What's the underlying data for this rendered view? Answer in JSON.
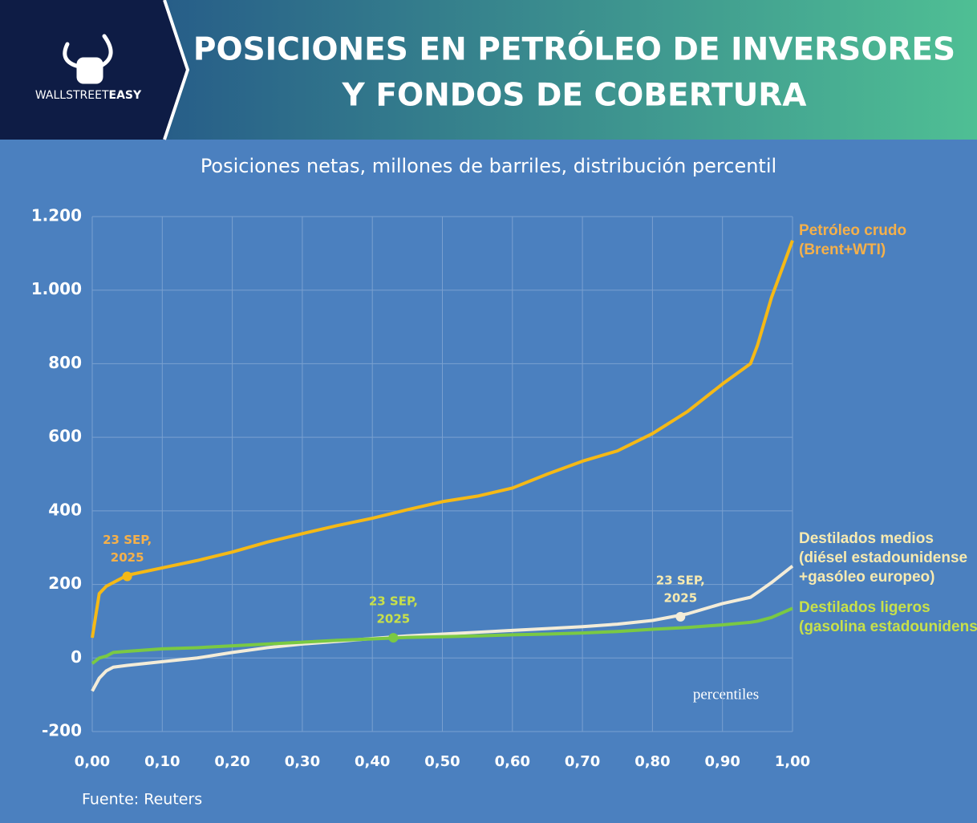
{
  "header": {
    "title": [
      "POSICIONES EN PETRÓLEO DE INVERSORES",
      "Y FONDOS DE COBERTURA"
    ],
    "logo": [
      "WALLSTREET",
      "EASY"
    ]
  },
  "chart_data": {
    "type": "line",
    "subtitle": "Posiciones netas, millones de barriles, distribución percentil",
    "x_label": "percentiles",
    "source": "Fuente: Reuters",
    "x": [
      0,
      0.01,
      0.02,
      0.03,
      0.05,
      0.1,
      0.15,
      0.2,
      0.25,
      0.3,
      0.35,
      0.4,
      0.45,
      0.5,
      0.55,
      0.6,
      0.65,
      0.7,
      0.75,
      0.8,
      0.85,
      0.9,
      0.94,
      0.95,
      0.97,
      1.0
    ],
    "series": [
      {
        "name": [
          "Petróleo crudo",
          "(Brent+WTI)"
        ],
        "color": "#f5b916",
        "label_color": "#f5b04a",
        "values": [
          55,
          175,
          195,
          205,
          225,
          245,
          265,
          288,
          315,
          338,
          360,
          380,
          403,
          425,
          440,
          462,
          500,
          535,
          563,
          610,
          670,
          745,
          800,
          850,
          980,
          1135
        ],
        "annotation": {
          "text": [
            "23 SEP,",
            "2025"
          ],
          "x": 0.05,
          "y": 222
        }
      },
      {
        "name": [
          "Destilados medios",
          "(diésel estadounidense",
          "+gasóleo europeo)"
        ],
        "color": "#f3ecd8",
        "label_color": "#f7eab0",
        "values": [
          -90,
          -55,
          -35,
          -25,
          -20,
          -10,
          0,
          15,
          28,
          38,
          45,
          53,
          60,
          65,
          70,
          75,
          80,
          85,
          92,
          102,
          120,
          148,
          165,
          178,
          205,
          250
        ],
        "annotation": {
          "text": [
            "23 SEP,",
            "2025"
          ],
          "x": 0.84,
          "y": 112
        }
      },
      {
        "name": [
          "Destilados ligeros",
          "(gasolina estadounidense)"
        ],
        "color": "#7ac943",
        "label_color": "#c8e04a",
        "values": [
          -15,
          0,
          5,
          15,
          18,
          25,
          28,
          33,
          38,
          43,
          48,
          52,
          56,
          58,
          60,
          63,
          65,
          68,
          72,
          78,
          83,
          90,
          97,
          100,
          110,
          135
        ],
        "annotation": {
          "text": [
            "23 SEP,",
            "2025"
          ],
          "x": 0.43,
          "y": 55
        }
      }
    ],
    "xlim": [
      0,
      1
    ],
    "ylim": [
      -200,
      1200
    ],
    "xticks": [
      {
        "value": 0,
        "label": "0,00"
      },
      {
        "value": 0.1,
        "label": "0,10"
      },
      {
        "value": 0.2,
        "label": "0,20"
      },
      {
        "value": 0.3,
        "label": "0,30"
      },
      {
        "value": 0.4,
        "label": "0,40"
      },
      {
        "value": 0.5,
        "label": "0,50"
      },
      {
        "value": 0.6,
        "label": "0,60"
      },
      {
        "value": 0.7,
        "label": "0,70"
      },
      {
        "value": 0.8,
        "label": "0,80"
      },
      {
        "value": 0.9,
        "label": "0,90"
      },
      {
        "value": 1,
        "label": "1,00"
      }
    ],
    "yticks": [
      -200,
      0,
      200,
      400,
      600,
      800,
      {
        "value": 1000,
        "label": "1.000"
      },
      {
        "value": 1200,
        "label": "1.200"
      }
    ],
    "grid": true
  }
}
